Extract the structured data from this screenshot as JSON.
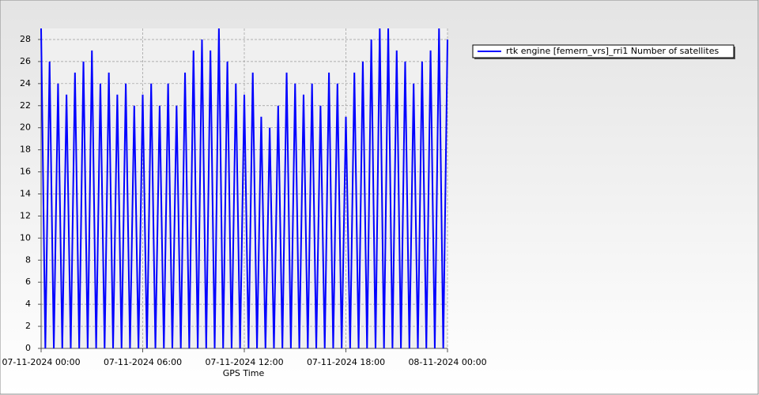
{
  "chart_data": {
    "type": "line",
    "xlabel": "GPS Time",
    "x": [
      0,
      0.25,
      0.5,
      0.75,
      1,
      1.25,
      1.5,
      1.75,
      2,
      2.25,
      2.5,
      2.75,
      3,
      3.25,
      3.5,
      3.75,
      4,
      4.25,
      4.5,
      4.75,
      5,
      5.25,
      5.5,
      5.75,
      6,
      6.25,
      6.5,
      6.75,
      7,
      7.25,
      7.5,
      7.75,
      8,
      8.25,
      8.5,
      8.75,
      9,
      9.25,
      9.5,
      9.75,
      10,
      10.25,
      10.5,
      10.75,
      11,
      11.25,
      11.5,
      11.75,
      12,
      12.25,
      12.5,
      12.75,
      13,
      13.25,
      13.5,
      13.75,
      14,
      14.25,
      14.5,
      14.75,
      15,
      15.25,
      15.5,
      15.75,
      16,
      16.25,
      16.5,
      16.75,
      17,
      17.25,
      17.5,
      17.75,
      18,
      18.25,
      18.5,
      18.75,
      19,
      19.25,
      19.5,
      19.75,
      20,
      20.25,
      20.5,
      20.75,
      21,
      21.25,
      21.5,
      21.75,
      22,
      22.25,
      22.5,
      22.75,
      23,
      23.25,
      23.5,
      23.75,
      24
    ],
    "series": [
      {
        "name": "rtk engine [femern_vrs]_rri1 Number of satellites",
        "color": "#0000ff",
        "values": [
          29,
          0,
          26,
          0,
          24,
          0,
          23,
          0,
          25,
          0,
          26,
          0,
          27,
          0,
          24,
          0,
          25,
          0,
          23,
          0,
          24,
          0,
          22,
          0,
          23,
          0,
          24,
          0,
          22,
          0,
          24,
          0,
          22,
          0,
          25,
          0,
          27,
          0,
          28,
          0,
          27,
          0,
          29,
          0,
          26,
          0,
          24,
          0,
          23,
          0,
          25,
          0,
          21,
          0,
          20,
          0,
          22,
          0,
          25,
          0,
          24,
          0,
          23,
          0,
          24,
          0,
          22,
          0,
          25,
          0,
          24,
          0,
          21,
          0,
          25,
          0,
          26,
          0,
          28,
          0,
          29,
          0,
          29,
          0,
          27,
          0,
          26,
          0,
          24,
          0,
          26,
          0,
          27,
          0,
          29,
          0,
          28
        ]
      }
    ],
    "xlim": [
      0,
      24
    ],
    "xticks": [
      {
        "value": 0,
        "label": "07-11-2024 00:00"
      },
      {
        "value": 6,
        "label": "07-11-2024 06:00"
      },
      {
        "value": 12,
        "label": "07-11-2024 12:00"
      },
      {
        "value": 18,
        "label": "07-11-2024 18:00"
      },
      {
        "value": 24,
        "label": "08-11-2024 00:00"
      }
    ],
    "ylim": [
      0,
      29
    ],
    "yticks": [
      0,
      2,
      4,
      6,
      8,
      10,
      12,
      14,
      16,
      18,
      20,
      22,
      24,
      26,
      28
    ],
    "grid": true,
    "legend": "top-right"
  }
}
